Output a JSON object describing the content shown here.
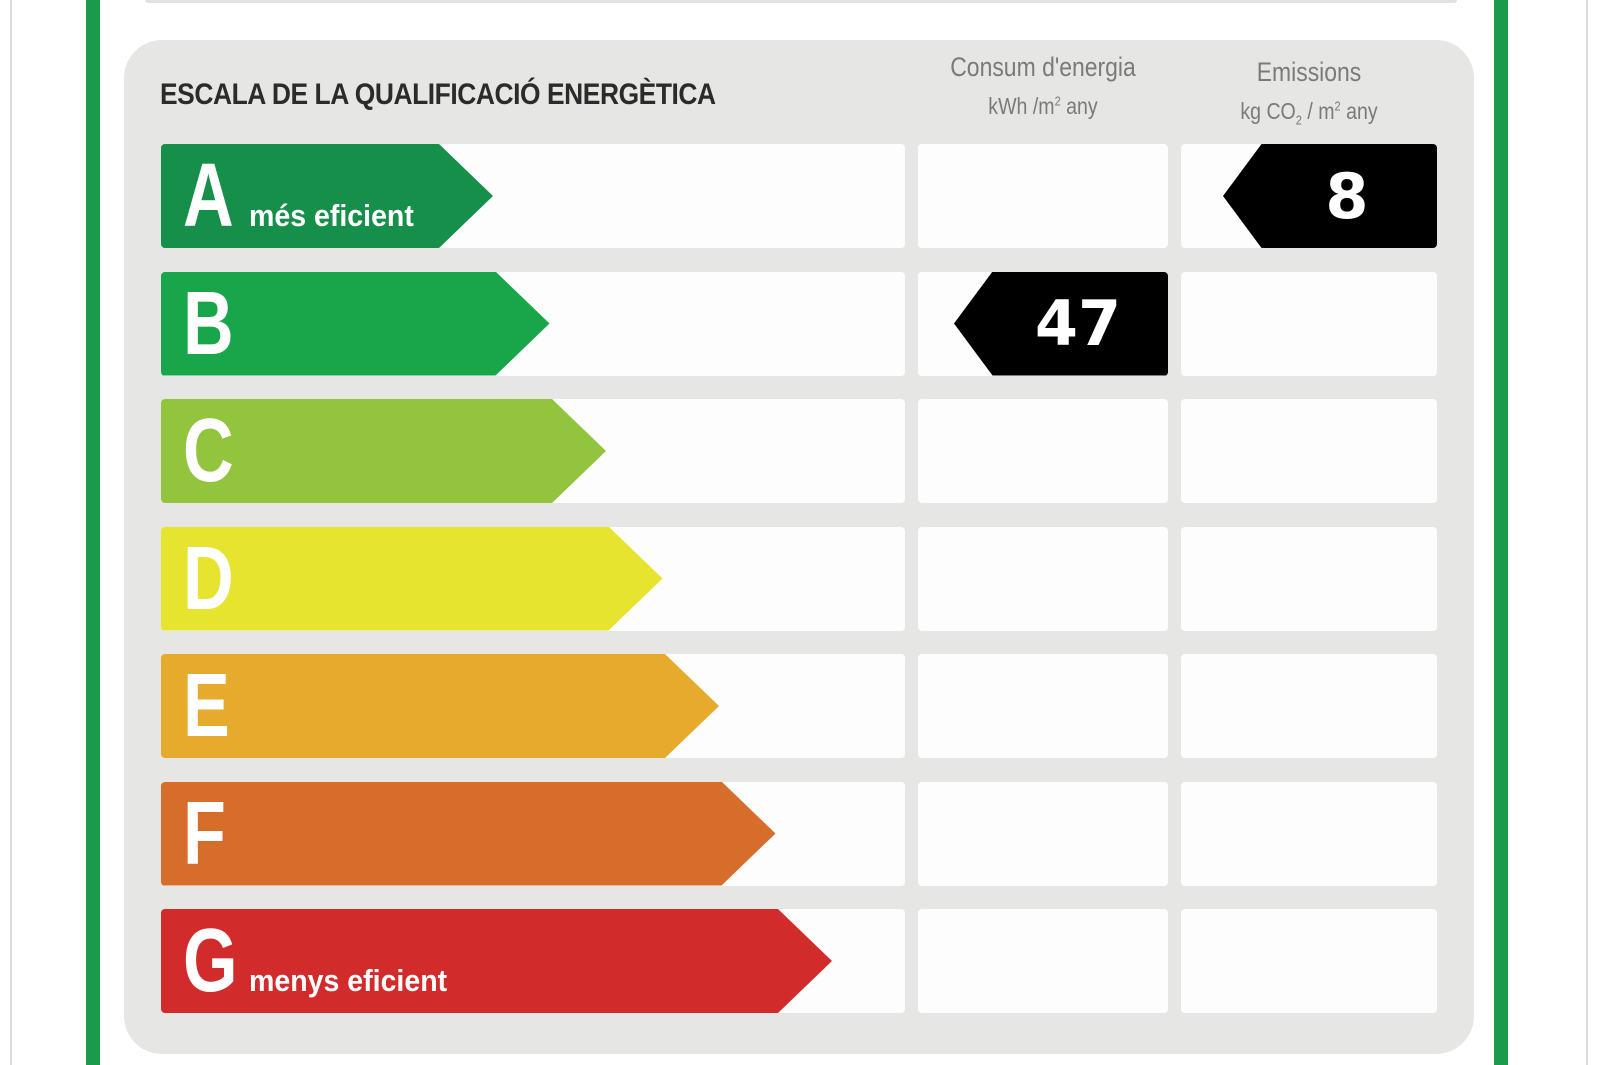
{
  "title": "ESCALA DE LA QUALIFICACIÓ ENERGÈTICA",
  "columns": {
    "energy": {
      "title": "Consum d'energia",
      "unit_pre": "kWh /m",
      "unit_sup": "2",
      "unit_post": " any"
    },
    "emissions": {
      "title": "Emissions",
      "unit_pre": "kg CO",
      "unit_sub": "2",
      "unit_mid": " / m",
      "unit_sup": "2",
      "unit_post": " any"
    }
  },
  "ratings": [
    {
      "letter": "A",
      "note": "més eficient",
      "color": "#168f4a"
    },
    {
      "letter": "B",
      "note": "",
      "color": "#19a64a"
    },
    {
      "letter": "C",
      "note": "",
      "color": "#93c43e"
    },
    {
      "letter": "D",
      "note": "",
      "color": "#e6e42e"
    },
    {
      "letter": "E",
      "note": "",
      "color": "#e6aa2c"
    },
    {
      "letter": "F",
      "note": "",
      "color": "#d66d2b"
    },
    {
      "letter": "G",
      "note": "menys eficient",
      "color": "#d22b2b"
    }
  ],
  "energy_rating": {
    "letter": "B",
    "value": "47"
  },
  "emissions_rating": {
    "letter": "A",
    "value": "8"
  }
}
